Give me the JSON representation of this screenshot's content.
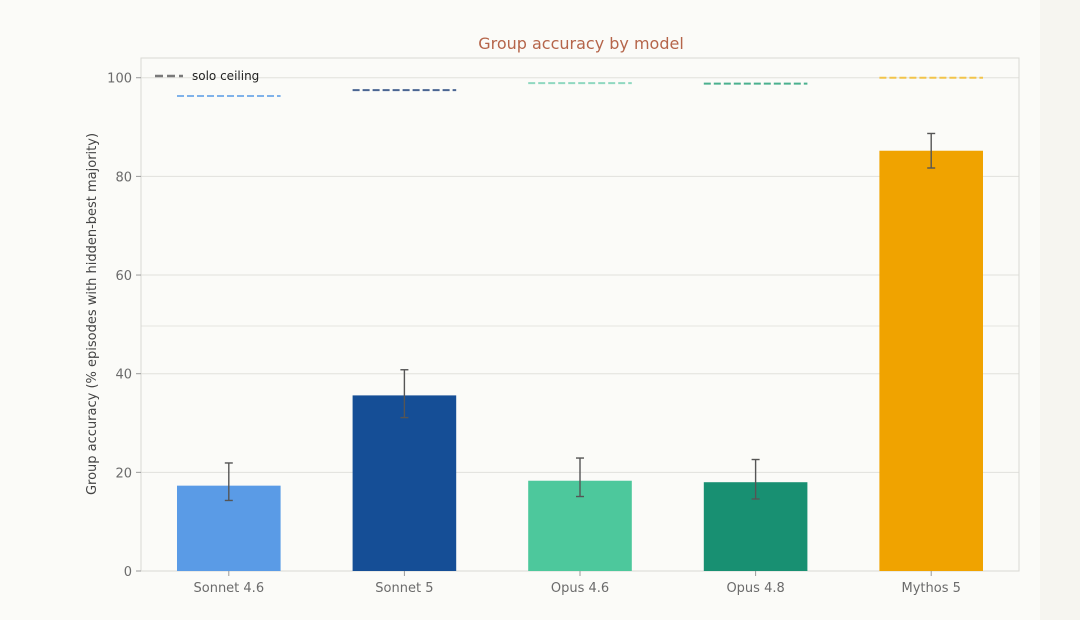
{
  "chart_data": {
    "type": "bar",
    "title": "Group accuracy by model",
    "xlabel": "",
    "ylabel": "Group accuracy (% episodes with hidden-best majority)",
    "ylim": [
      0,
      104
    ],
    "yticks": [
      0,
      20,
      40,
      60,
      80,
      100
    ],
    "grid": true,
    "legend": {
      "placement": "top-left",
      "entries": [
        {
          "label": "solo ceiling",
          "style": "dashed",
          "color": "#7a7a7a"
        }
      ]
    },
    "categories": [
      "Sonnet 4.6",
      "Sonnet 5",
      "Opus 4.6",
      "Opus 4.8",
      "Mythos 5"
    ],
    "values": [
      17.3,
      35.6,
      18.3,
      18.0,
      85.2
    ],
    "error_low": [
      14.3,
      31.1,
      15.1,
      14.6,
      81.7
    ],
    "error_high": [
      21.9,
      40.8,
      22.9,
      22.6,
      88.7
    ],
    "solo_ceiling": [
      96.3,
      97.5,
      98.9,
      98.8,
      100.0
    ],
    "colors": [
      "#5a9be6",
      "#154e96",
      "#4dc89c",
      "#189072",
      "#f0a300"
    ],
    "ceiling_colors": [
      "#7fb2ea",
      "#4a6592",
      "#8fd8c0",
      "#4ab08e",
      "#f2c44a"
    ]
  }
}
